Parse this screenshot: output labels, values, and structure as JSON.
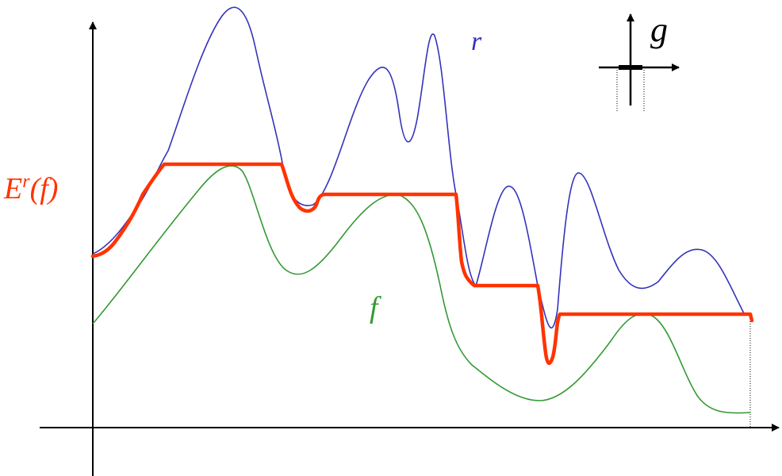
{
  "labels": {
    "r": "r",
    "f": "f",
    "g": "g",
    "erosion_E": "E",
    "erosion_sup": "r",
    "erosion_arg": "(f)"
  },
  "colors": {
    "r_curve": "#3333bb",
    "f_curve": "#339933",
    "erosion_curve": "#ff3300",
    "axes": "#000000",
    "r_label": "#3333bb",
    "f_label": "#339933",
    "erosion_label": "#ff3300"
  }
}
